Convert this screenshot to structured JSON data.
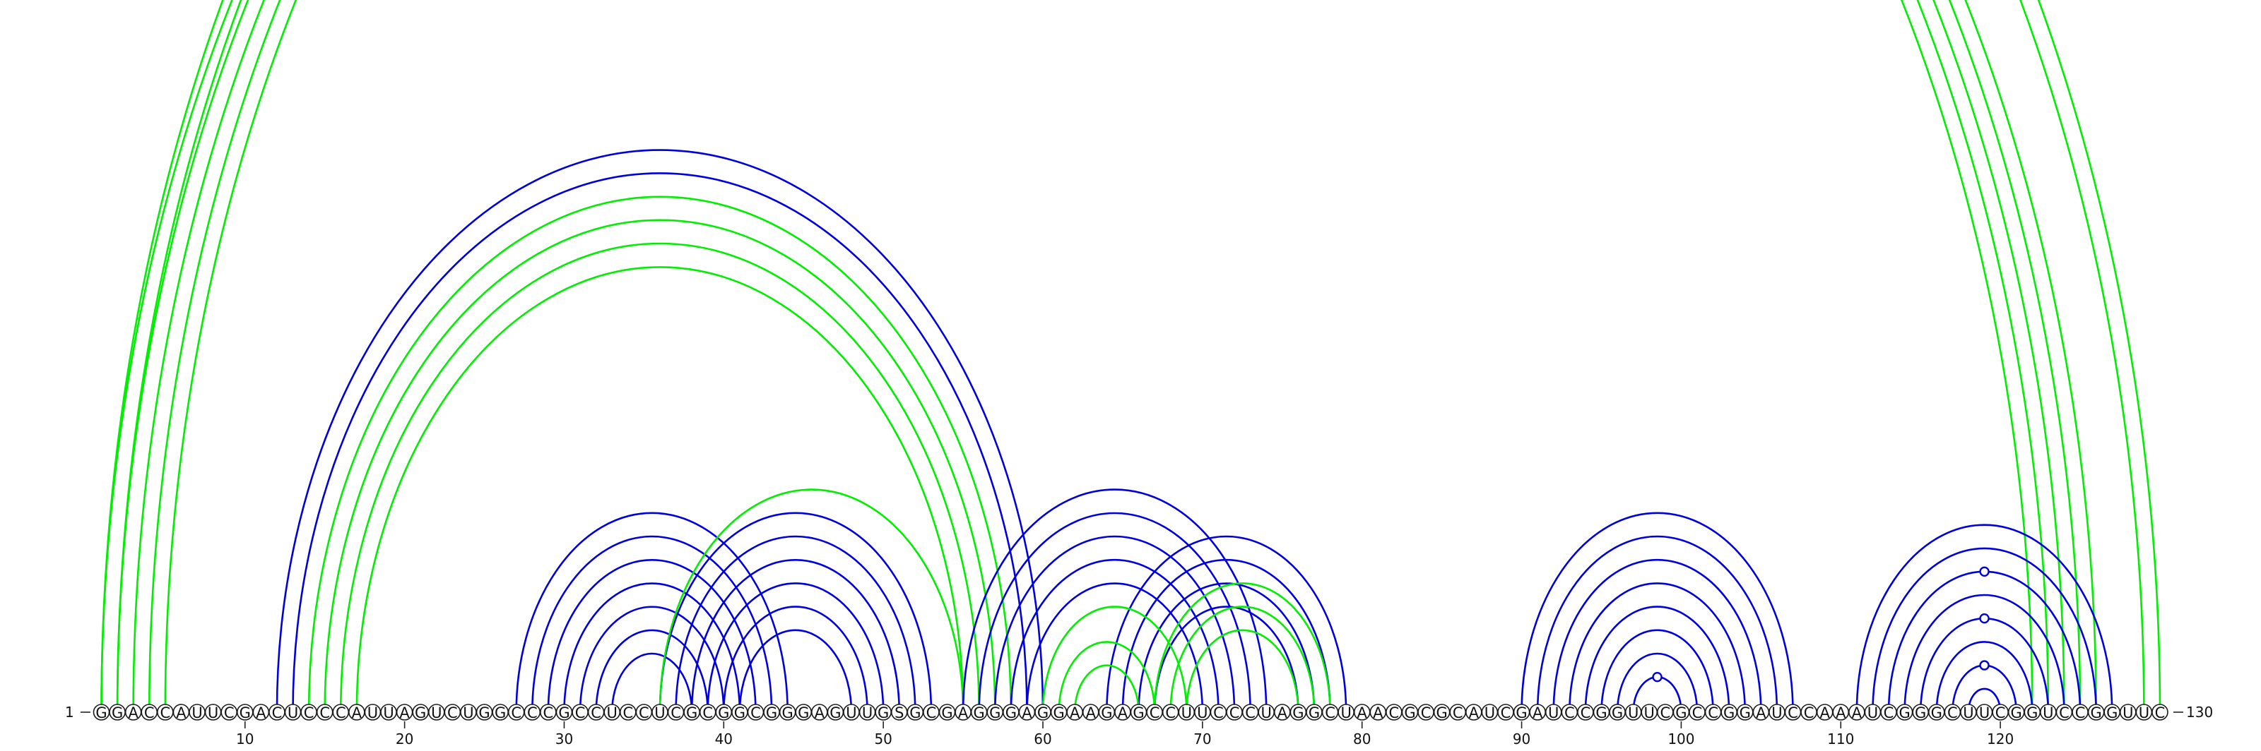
{
  "sequence": "GGACCAUUCGACUCCCAUUAGUCUGGCCCGCCUCCUCGCGGCGGGAGUUGSGCGAGGGAGGAAGAGCCUUCCCUAGGCUAACGCGCAUCGAUCCGGUUCGCCGGAUCCAAAUCGGGCUUCGGUCCGGUUC",
  "start_label": "1",
  "end_label": "130",
  "tick_labels": [
    "10",
    "20",
    "30",
    "40",
    "50",
    "60",
    "70",
    "80",
    "90",
    "100",
    "110",
    "120"
  ],
  "colors": {
    "green": "#00ee00",
    "blue": "#0000dd",
    "outline": "#1a1a1a"
  },
  "helices": [
    {
      "color": "green",
      "pairs": [
        [
          1,
          122
        ],
        [
          2,
          123
        ],
        [
          3,
          124
        ],
        [
          4,
          125
        ],
        [
          5,
          126
        ]
      ]
    },
    {
      "color": "green",
      "pairs": [
        [
          1,
          130
        ],
        [
          2,
          129
        ]
      ]
    },
    {
      "color": "blue",
      "pairs": [
        [
          12,
          60
        ],
        [
          13,
          59
        ]
      ]
    },
    {
      "color": "green",
      "pairs": [
        [
          14,
          58
        ],
        [
          15,
          57
        ],
        [
          16,
          56
        ],
        [
          17,
          55
        ]
      ]
    },
    {
      "color": "blue",
      "pairs": [
        [
          27,
          44
        ],
        [
          28,
          43
        ],
        [
          29,
          42
        ],
        [
          30,
          41
        ],
        [
          31,
          40
        ],
        [
          32,
          39
        ],
        [
          33,
          38
        ]
      ]
    },
    {
      "color": "blue",
      "pairs": [
        [
          36,
          53
        ],
        [
          37,
          52
        ],
        [
          38,
          51
        ],
        [
          39,
          50
        ],
        [
          40,
          49
        ],
        [
          41,
          48
        ]
      ]
    },
    {
      "color": "green",
      "pairs": [
        [
          36,
          55
        ]
      ]
    },
    {
      "color": "blue",
      "pairs": [
        [
          55,
          74
        ],
        [
          56,
          73
        ],
        [
          57,
          72
        ],
        [
          58,
          71
        ],
        [
          59,
          70
        ]
      ]
    },
    {
      "color": "blue",
      "pairs": [
        [
          64,
          79
        ],
        [
          65,
          78
        ],
        [
          66,
          77
        ],
        [
          67,
          76
        ]
      ]
    },
    {
      "color": "green",
      "pairs": [
        [
          67,
          78
        ],
        [
          68,
          77
        ],
        [
          69,
          76
        ]
      ]
    },
    {
      "color": "green",
      "pairs": [
        [
          61,
          67
        ],
        [
          62,
          66
        ]
      ]
    },
    {
      "color": "green",
      "pairs": [
        [
          60,
          69
        ]
      ]
    },
    {
      "color": "blue",
      "pairs": [
        [
          90,
          107
        ],
        [
          91,
          106
        ],
        [
          92,
          105
        ],
        [
          93,
          104
        ],
        [
          94,
          103
        ],
        [
          95,
          102
        ],
        [
          96,
          101
        ],
        [
          97,
          100
        ]
      ]
    },
    {
      "color": "blue",
      "pairs": [
        [
          111,
          127
        ],
        [
          112,
          126
        ],
        [
          113,
          125
        ],
        [
          114,
          124
        ],
        [
          115,
          123
        ],
        [
          116,
          122
        ],
        [
          117,
          121
        ],
        [
          118,
          120
        ]
      ]
    }
  ],
  "markers": [
    {
      "color": "green",
      "i": 1,
      "j": 130
    },
    {
      "color": "blue",
      "i": 97,
      "j": 100
    },
    {
      "color": "blue",
      "i": 113,
      "j": 125
    },
    {
      "color": "blue",
      "i": 115,
      "j": 123
    },
    {
      "color": "blue",
      "i": 117,
      "j": 121
    }
  ]
}
